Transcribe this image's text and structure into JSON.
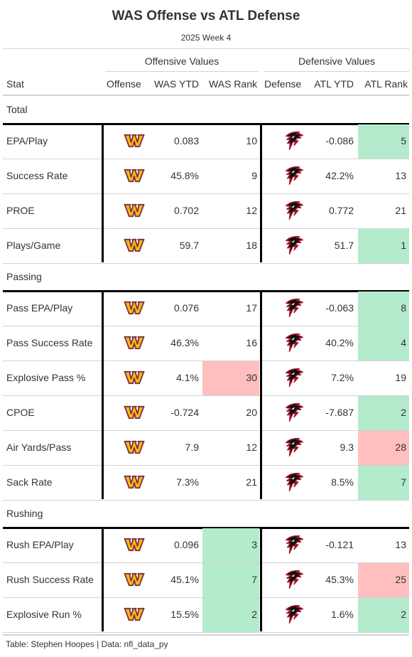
{
  "header": {
    "title": "WAS Offense vs ATL Defense",
    "subtitle": "2025 Week 4"
  },
  "spanners": {
    "offense": "Offensive Values",
    "defense": "Defensive Values"
  },
  "columns": [
    "Stat",
    "Offense",
    "WAS YTD",
    "WAS Rank",
    "Defense",
    "ATL YTD",
    "ATL Rank"
  ],
  "offense_logo": "commanders-w-logo-icon",
  "defense_logo": "falcons-logo-icon",
  "colors": {
    "good": "#b3ebcc",
    "bad": "#ffbfbf",
    "border": "#000000",
    "grid": "#d3d3d3"
  },
  "groups": [
    {
      "label": "Total",
      "rows": [
        {
          "stat": "EPA/Play",
          "was_ytd": "0.083",
          "was_rank": "10",
          "atl_ytd": "-0.086",
          "atl_rank": "5",
          "was_hl": "",
          "atl_hl": "good"
        },
        {
          "stat": "Success Rate",
          "was_ytd": "45.8%",
          "was_rank": "9",
          "atl_ytd": "42.2%",
          "atl_rank": "13",
          "was_hl": "",
          "atl_hl": ""
        },
        {
          "stat": "PROE",
          "was_ytd": "0.702",
          "was_rank": "12",
          "atl_ytd": "0.772",
          "atl_rank": "21",
          "was_hl": "",
          "atl_hl": ""
        },
        {
          "stat": "Plays/Game",
          "was_ytd": "59.7",
          "was_rank": "18",
          "atl_ytd": "51.7",
          "atl_rank": "1",
          "was_hl": "",
          "atl_hl": "good"
        }
      ]
    },
    {
      "label": "Passing",
      "rows": [
        {
          "stat": "Pass EPA/Play",
          "was_ytd": "0.076",
          "was_rank": "17",
          "atl_ytd": "-0.063",
          "atl_rank": "8",
          "was_hl": "",
          "atl_hl": "good"
        },
        {
          "stat": "Pass Success Rate",
          "was_ytd": "46.3%",
          "was_rank": "16",
          "atl_ytd": "40.2%",
          "atl_rank": "4",
          "was_hl": "",
          "atl_hl": "good"
        },
        {
          "stat": "Explosive Pass %",
          "was_ytd": "4.1%",
          "was_rank": "30",
          "atl_ytd": "7.2%",
          "atl_rank": "19",
          "was_hl": "bad",
          "atl_hl": ""
        },
        {
          "stat": "CPOE",
          "was_ytd": "-0.724",
          "was_rank": "20",
          "atl_ytd": "-7.687",
          "atl_rank": "2",
          "was_hl": "",
          "atl_hl": "good"
        },
        {
          "stat": "Air Yards/Pass",
          "was_ytd": "7.9",
          "was_rank": "12",
          "atl_ytd": "9.3",
          "atl_rank": "28",
          "was_hl": "",
          "atl_hl": "bad"
        },
        {
          "stat": "Sack Rate",
          "was_ytd": "7.3%",
          "was_rank": "21",
          "atl_ytd": "8.5%",
          "atl_rank": "7",
          "was_hl": "",
          "atl_hl": "good"
        }
      ]
    },
    {
      "label": "Rushing",
      "rows": [
        {
          "stat": "Rush EPA/Play",
          "was_ytd": "0.096",
          "was_rank": "3",
          "atl_ytd": "-0.121",
          "atl_rank": "13",
          "was_hl": "good",
          "atl_hl": ""
        },
        {
          "stat": "Rush Success Rate",
          "was_ytd": "45.1%",
          "was_rank": "7",
          "atl_ytd": "45.3%",
          "atl_rank": "25",
          "was_hl": "good",
          "atl_hl": "bad"
        },
        {
          "stat": "Explosive Run %",
          "was_ytd": "15.5%",
          "was_rank": "2",
          "atl_ytd": "1.6%",
          "atl_rank": "2",
          "was_hl": "good",
          "atl_hl": "good"
        }
      ]
    }
  ],
  "footer": "Table: Stephen Hoopes | Data: nfl_data_py"
}
